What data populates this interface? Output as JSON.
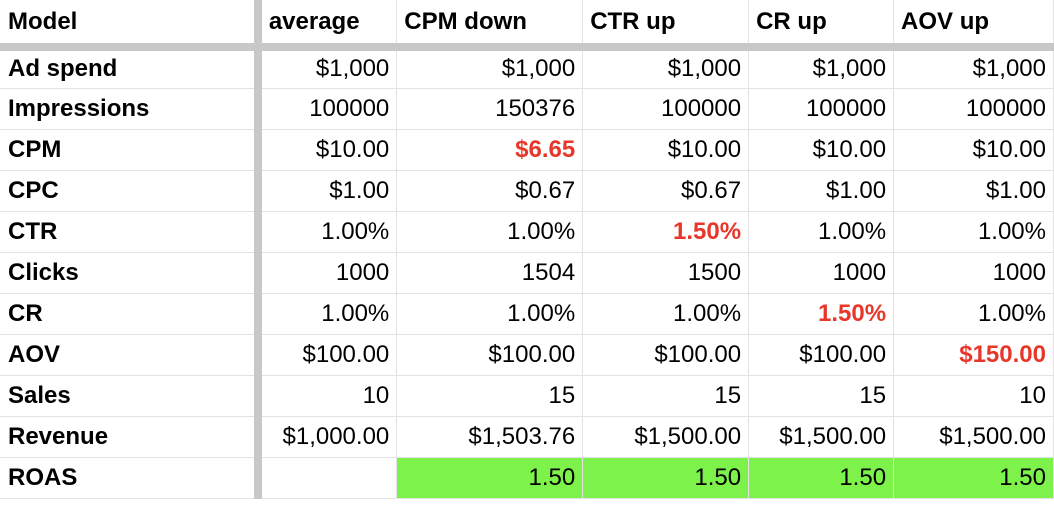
{
  "columns": [
    "Model",
    "average",
    "CPM down",
    "CTR up",
    "CR up",
    "AOV up"
  ],
  "rows": [
    {
      "label": "Ad spend",
      "values": [
        "$1,000",
        "$1,000",
        "$1,000",
        "$1,000",
        "$1,000"
      ],
      "highlight": null
    },
    {
      "label": "Impressions",
      "values": [
        "100000",
        "150376",
        "100000",
        "100000",
        "100000"
      ],
      "highlight": null
    },
    {
      "label": "CPM",
      "values": [
        "$10.00",
        "$6.65",
        "$10.00",
        "$10.00",
        "$10.00"
      ],
      "highlight": 1
    },
    {
      "label": "CPC",
      "values": [
        "$1.00",
        "$0.67",
        "$0.67",
        "$1.00",
        "$1.00"
      ],
      "highlight": null
    },
    {
      "label": "CTR",
      "values": [
        "1.00%",
        "1.00%",
        "1.50%",
        "1.00%",
        "1.00%"
      ],
      "highlight": 2
    },
    {
      "label": "Clicks",
      "values": [
        "1000",
        "1504",
        "1500",
        "1000",
        "1000"
      ],
      "highlight": null
    },
    {
      "label": "CR",
      "values": [
        "1.00%",
        "1.00%",
        "1.00%",
        "1.50%",
        "1.00%"
      ],
      "highlight": 3
    },
    {
      "label": "AOV",
      "values": [
        "$100.00",
        "$100.00",
        "$100.00",
        "$100.00",
        "$150.00"
      ],
      "highlight": 4
    },
    {
      "label": "Sales",
      "values": [
        "10",
        "15",
        "15",
        "15",
        "10"
      ],
      "highlight": null
    },
    {
      "label": "Revenue",
      "values": [
        "$1,000.00",
        "$1,503.76",
        "$1,500.00",
        "$1,500.00",
        "$1,500.00"
      ],
      "highlight": null
    },
    {
      "label": "ROAS",
      "values": [
        "",
        "1.50",
        "1.50",
        "1.50",
        "1.50"
      ],
      "highlight": null,
      "fill": "green"
    }
  ],
  "colors": {
    "highlight_text": "#e8372a",
    "roas_fill": "#7cf24a",
    "frozen_separator": "#c8c8c8"
  }
}
